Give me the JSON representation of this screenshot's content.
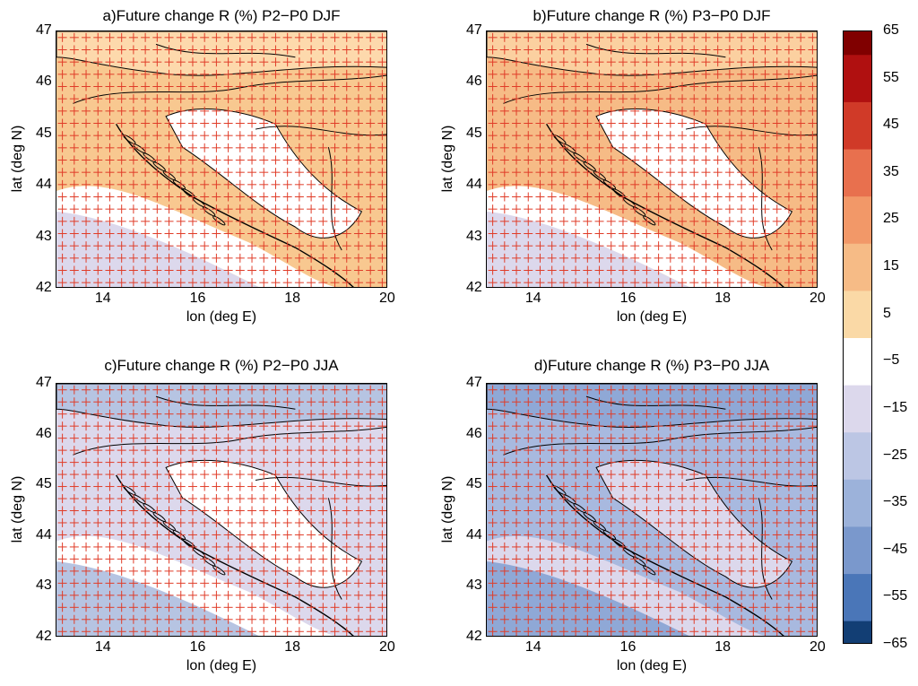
{
  "panels": [
    {
      "id": "a",
      "title": "a)Future change R (%) P2−P0 DJF",
      "ylabel": "lat (deg N)",
      "xlabel": "lon (deg E)",
      "base_color": "#f8c890",
      "shade_color": "#fdd9ac",
      "lowland_color": "#ffffff",
      "sea_color": "#dcd8ec",
      "coast_shift": 0
    },
    {
      "id": "b",
      "title": "b)Future change R (%) P3−P0 DJF",
      "ylabel": "lat (deg N)",
      "xlabel": "lon (deg E)",
      "base_color": "#f6bb86",
      "shade_color": "#fbd0a0",
      "lowland_color": "#ffffff",
      "sea_color": "#dcd8ec",
      "coast_shift": 0
    },
    {
      "id": "c",
      "title": "c)Future change R (%) P2−P0 JJA",
      "ylabel": "lat (deg N)",
      "xlabel": "lon (deg E)",
      "base_color": "#dcd8ec",
      "shade_color": "#b6c4e2",
      "lowland_color": "#ffffff",
      "sea_color": "#b6c4e2",
      "coast_shift": 0
    },
    {
      "id": "d",
      "title": "d)Future change R (%) P3−P0 JJA",
      "ylabel": "lat (deg N)",
      "xlabel": "lon (deg E)",
      "base_color": "#a8b9df",
      "shade_color": "#8fa8d6",
      "lowland_color": "#dcd8ec",
      "sea_color": "#8fa8d6",
      "coast_shift": 0
    }
  ],
  "axes": {
    "lon_ticks": [
      "14",
      "16",
      "18",
      "20"
    ],
    "lat_ticks": [
      "42",
      "43",
      "44",
      "45",
      "46",
      "47"
    ],
    "lon_range": [
      13,
      20
    ],
    "lat_range": [
      42,
      47
    ]
  },
  "colorbar": {
    "ticks": [
      "65",
      "55",
      "45",
      "35",
      "25",
      "15",
      "5",
      "−5",
      "−15",
      "−25",
      "−35",
      "−45",
      "−55",
      "−65"
    ],
    "colors": [
      "#800000",
      "#b01010",
      "#d03a28",
      "#e8704e",
      "#f29868",
      "#f6bb86",
      "#fad9a6",
      "#ffffff",
      "#dcd8ec",
      "#bcc6e4",
      "#9cb2da",
      "#7a98cc",
      "#4a76b8",
      "#2c5a9c",
      "#123e74"
    ]
  },
  "grid_marker_color": "#e03c28"
}
